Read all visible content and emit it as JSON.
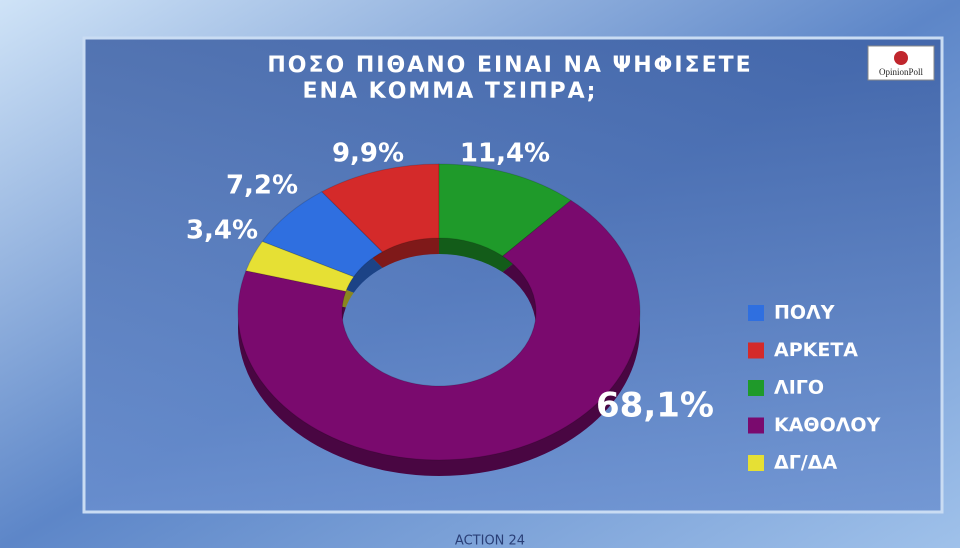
{
  "chart_data": {
    "type": "donut",
    "title": [
      "ΠΟΣΟ ΠΙΘΑΝΟ ΕΙΝΑΙ ΝΑ ΨΗΦΙΣΕΤΕ",
      "ΕΝΑ ΚΟΜΜΑ ΤΣΙΠΡΑ;"
    ],
    "categories": [
      "ΠΟΛΥ",
      "ΑΡΚΕΤΑ",
      "ΛΙΓΟ",
      "ΚΑΘΟΛΟΥ",
      "ΔΓ/ΔΑ"
    ],
    "values": [
      7.2,
      9.9,
      11.4,
      68.1,
      3.4
    ],
    "value_labels": [
      "7,2%",
      "9,9%",
      "11,4%",
      "68,1%",
      "3,4%"
    ],
    "colors": [
      "#2f6fe0",
      "#d42a2a",
      "#1f9a2a",
      "#7a0a6e",
      "#e6e034"
    ],
    "source": "OpinionPoll",
    "brand": "ACTION 24"
  }
}
